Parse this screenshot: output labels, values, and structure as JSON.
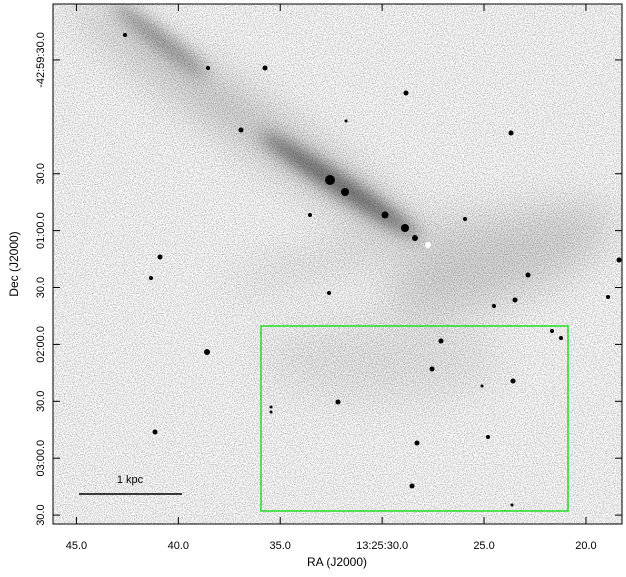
{
  "chart_data": {
    "type": "image",
    "xlabel": "RA (J2000)",
    "ylabel": "Dec (J2000)",
    "xlim": [
      46.15,
      18.23
    ],
    "xticks": [
      {
        "value": 45,
        "label": "45.0"
      },
      {
        "value": 40,
        "label": "40.0"
      },
      {
        "value": 35,
        "label": "35.0"
      },
      {
        "value": 30,
        "label": "13:25:30.0"
      },
      {
        "value": 25,
        "label": "25.0"
      },
      {
        "value": 20,
        "label": "20.0"
      }
    ],
    "ylim": [
      0.5,
      274.7
    ],
    "yticks": [
      {
        "value": 30,
        "label": "-42:59:30.0"
      },
      {
        "value": 90,
        "label": "30.0"
      },
      {
        "value": 120,
        "label": "01:00.0"
      },
      {
        "value": 150,
        "label": "30.0"
      },
      {
        "value": 180,
        "label": "02:00.0"
      },
      {
        "value": 210,
        "label": "30.0"
      },
      {
        "value": 240,
        "label": "03:00.0"
      },
      {
        "value": 270,
        "label": "30.0"
      }
    ],
    "scale_bar_label": "1 kpc"
  }
}
